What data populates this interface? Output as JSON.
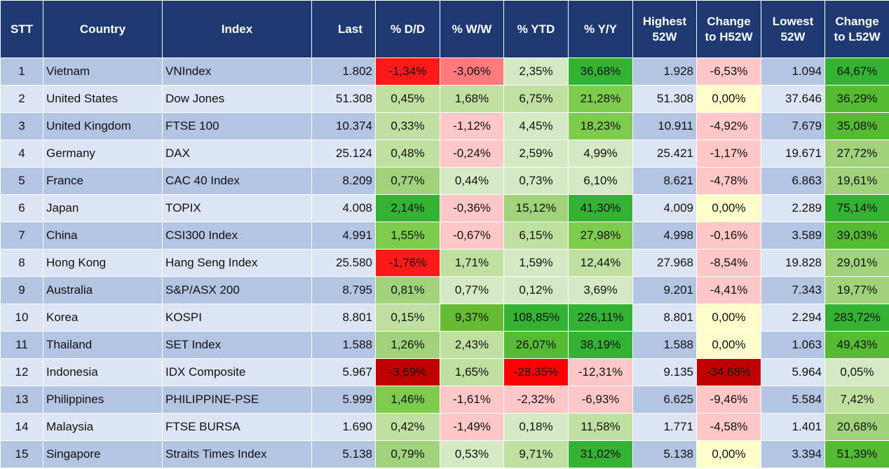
{
  "headers": [
    "STT",
    "Country",
    "Index",
    "Last",
    "% D/D",
    "% W/W",
    "% YTD",
    "% Y/Y",
    "Highest 52W",
    "Change to H52W",
    "Lowest 52W",
    "Change to L52W"
  ],
  "rows": [
    {
      "stt": "1",
      "country": "Vietnam",
      "index": "VNIndex",
      "last": "1.802",
      "dd": "-1,34%",
      "ww": "-3,06%",
      "ytd": "2,35%",
      "yy": "36,68%",
      "h52": "1.928",
      "ch52": "-6,53%",
      "l52": "1.094",
      "cl52": "64,67%"
    },
    {
      "stt": "2",
      "country": "United States",
      "index": "Dow Jones",
      "last": "51.308",
      "dd": "0,45%",
      "ww": "1,68%",
      "ytd": "6,75%",
      "yy": "21,28%",
      "h52": "51.308",
      "ch52": "0,00%",
      "l52": "37.646",
      "cl52": "36,29%"
    },
    {
      "stt": "3",
      "country": "United Kingdom",
      "index": "FTSE 100",
      "last": "10.374",
      "dd": "0,33%",
      "ww": "-1,12%",
      "ytd": "4,45%",
      "yy": "18,23%",
      "h52": "10.911",
      "ch52": "-4,92%",
      "l52": "7.679",
      "cl52": "35,08%"
    },
    {
      "stt": "4",
      "country": "Germany",
      "index": "DAX",
      "last": "25.124",
      "dd": "0,48%",
      "ww": "-0,24%",
      "ytd": "2,59%",
      "yy": "4,99%",
      "h52": "25.421",
      "ch52": "-1,17%",
      "l52": "19.671",
      "cl52": "27,72%"
    },
    {
      "stt": "5",
      "country": "France",
      "index": "CAC 40 Index",
      "last": "8.209",
      "dd": "0,77%",
      "ww": "0,44%",
      "ytd": "0,73%",
      "yy": "6,10%",
      "h52": "8.621",
      "ch52": "-4,78%",
      "l52": "6.863",
      "cl52": "19,61%"
    },
    {
      "stt": "6",
      "country": "Japan",
      "index": "TOPIX",
      "last": "4.008",
      "dd": "2,14%",
      "ww": "-0,36%",
      "ytd": "15,12%",
      "yy": "41,30%",
      "h52": "4.009",
      "ch52": "0,00%",
      "l52": "2.289",
      "cl52": "75,14%"
    },
    {
      "stt": "7",
      "country": "China",
      "index": "CSI300 Index",
      "last": "4.991",
      "dd": "1,55%",
      "ww": "-0,67%",
      "ytd": "6,15%",
      "yy": "27,98%",
      "h52": "4.998",
      "ch52": "-0,16%",
      "l52": "3.589",
      "cl52": "39,03%"
    },
    {
      "stt": "8",
      "country": "Hong Kong",
      "index": "Hang Seng Index",
      "last": "25.580",
      "dd": "-1,76%",
      "ww": "1,71%",
      "ytd": "1,59%",
      "yy": "12,44%",
      "h52": "27.968",
      "ch52": "-8,54%",
      "l52": "19.828",
      "cl52": "29,01%"
    },
    {
      "stt": "9",
      "country": "Australia",
      "index": "S&P/ASX 200",
      "last": "8.795",
      "dd": "0,81%",
      "ww": "0,77%",
      "ytd": "0,12%",
      "yy": "3,69%",
      "h52": "9.201",
      "ch52": "-4,41%",
      "l52": "7.343",
      "cl52": "19,77%"
    },
    {
      "stt": "10",
      "country": "Korea",
      "index": "KOSPI",
      "last": "8.801",
      "dd": "0,15%",
      "ww": "9,37%",
      "ytd": "108,85%",
      "yy": "226,11%",
      "h52": "8.801",
      "ch52": "0,00%",
      "l52": "2.294",
      "cl52": "283,72%"
    },
    {
      "stt": "11",
      "country": "Thailand",
      "index": "SET Index",
      "last": "1.588",
      "dd": "1,26%",
      "ww": "2,43%",
      "ytd": "26,07%",
      "yy": "38,19%",
      "h52": "1.588",
      "ch52": "0,00%",
      "l52": "1.063",
      "cl52": "49,43%"
    },
    {
      "stt": "12",
      "country": "Indonesia",
      "index": "IDX Composite",
      "last": "5.967",
      "dd": "-3,69%",
      "ww": "1,65%",
      "ytd": "-28,35%",
      "yy": "-12,31%",
      "h52": "9.135",
      "ch52": "-34,68%",
      "l52": "5.964",
      "cl52": "0,05%"
    },
    {
      "stt": "13",
      "country": "Philippines",
      "index": "PHILIPPINE-PSE",
      "last": "5.999",
      "dd": "1,46%",
      "ww": "-1,61%",
      "ytd": "-2,32%",
      "yy": "-6,93%",
      "h52": "6.625",
      "ch52": "-9,46%",
      "l52": "5.584",
      "cl52": "7,42%"
    },
    {
      "stt": "14",
      "country": "Malaysia",
      "index": "FTSE BURSA",
      "last": "1.690",
      "dd": "0,42%",
      "ww": "-1,49%",
      "ytd": "0,18%",
      "yy": "11,58%",
      "h52": "1.771",
      "ch52": "-4,58%",
      "l52": "1.401",
      "cl52": "20,68%"
    },
    {
      "stt": "15",
      "country": "Singapore",
      "index": "Straits Times Index",
      "last": "5.138",
      "dd": "0,79%",
      "ww": "0,53%",
      "ytd": "9,71%",
      "yy": "31,02%",
      "h52": "5.138",
      "ch52": "0,00%",
      "l52": "3.394",
      "cl52": "51,39%"
    }
  ],
  "colors": {
    "header": "#1f3a73",
    "row_odd": "#b4c5e3",
    "row_even": "#dce5f3"
  }
}
